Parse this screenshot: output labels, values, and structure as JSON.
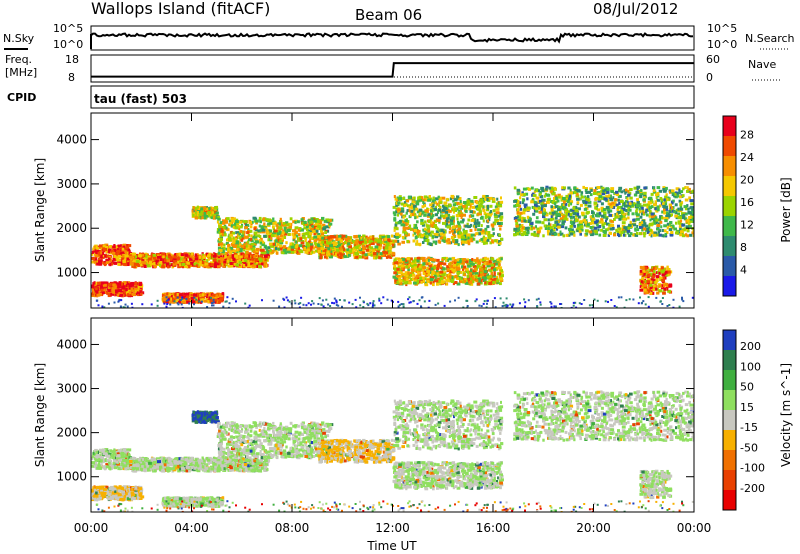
{
  "header": {
    "site": "Wallops Island (fitACF)",
    "beam": "Beam 06",
    "date": "08/Jul/2012"
  },
  "noise_panel": {
    "left_label": "N.Sky",
    "right_label": "N.Search",
    "tick_top": "10^5",
    "tick_bottom": "10^0"
  },
  "freq_panel": {
    "left_label_1": "Freq.",
    "left_label_2": "[MHz]",
    "right_label": "Nave",
    "left_ticks": [
      "18",
      "8"
    ],
    "right_ticks": [
      "60",
      "0"
    ]
  },
  "cpid_panel": {
    "label": "CPID",
    "mode": "tau (fast) 503"
  },
  "power_panel": {
    "ylabel": "Slant Range [km]",
    "yticks": [
      "4000",
      "3000",
      "2000",
      "1000"
    ],
    "colorbar_label": "Power [dB]",
    "colorbar_ticks": [
      "28",
      "24",
      "20",
      "16",
      "12",
      "8",
      "4"
    ],
    "colors": [
      "#e8001c",
      "#f04a00",
      "#f78e00",
      "#f5c800",
      "#9bd400",
      "#3fb84a",
      "#2e8b6f",
      "#2a5aa8",
      "#1a1ae8"
    ]
  },
  "velocity_panel": {
    "ylabel": "Slant Range [km]",
    "yticks": [
      "4000",
      "3000",
      "2000",
      "1000"
    ],
    "colorbar_label": "Velocity [m s^-1]",
    "colorbar_ticks": [
      "200",
      "100",
      "50",
      "15",
      "-15",
      "-50",
      "-100",
      "-200"
    ],
    "colors": [
      "#1f3fbf",
      "#2f7f4f",
      "#3faf3f",
      "#8fdf5f",
      "#c8c8c0",
      "#f7b000",
      "#f07000",
      "#e84000",
      "#e80000"
    ]
  },
  "xaxis": {
    "label": "Time UT",
    "ticks": [
      "00:00",
      "04:00",
      "08:00",
      "12:00",
      "16:00",
      "20:00",
      "00:00"
    ]
  },
  "chart_data": {
    "type": "heatmap",
    "title": "Wallops Island (fitACF)  Beam 06  08/Jul/2012",
    "xlabel": "Time UT",
    "ylabel": "Slant Range [km]",
    "xlim": [
      "00:00",
      "24:00"
    ],
    "ylim": [
      200,
      4600
    ],
    "frequency_mhz": [
      {
        "t": 0,
        "v": 10
      },
      {
        "t": 12,
        "v": 10
      },
      {
        "t": 12.05,
        "v": 15
      },
      {
        "t": 24,
        "v": 15
      }
    ],
    "bands": [
      {
        "t0": 0.0,
        "t1": 1.5,
        "r0": 1150,
        "r1": 1600,
        "power_db": 26,
        "velocity": 15
      },
      {
        "t0": 0.0,
        "t1": 2.0,
        "r0": 450,
        "r1": 750,
        "power_db": 28,
        "velocity": -15
      },
      {
        "t0": 1.5,
        "t1": 7.0,
        "r0": 1100,
        "r1": 1400,
        "power_db": 24,
        "velocity": 15
      },
      {
        "t0": 2.8,
        "t1": 5.2,
        "r0": 300,
        "r1": 500,
        "power_db": 26,
        "velocity": 15
      },
      {
        "t0": 4.0,
        "t1": 5.0,
        "r0": 2200,
        "r1": 2450,
        "power_db": 18,
        "velocity": 150
      },
      {
        "t0": 5.0,
        "t1": 9.5,
        "r0": 1400,
        "r1": 2200,
        "power_db": 18,
        "velocity": 15
      },
      {
        "t0": 9.0,
        "t1": 12.0,
        "r0": 1300,
        "r1": 1800,
        "power_db": 20,
        "velocity": -15
      },
      {
        "t0": 12.0,
        "t1": 16.3,
        "r0": 1600,
        "r1": 2700,
        "power_db": 16,
        "velocity": 15
      },
      {
        "t0": 12.0,
        "t1": 16.3,
        "r0": 700,
        "r1": 1300,
        "power_db": 20,
        "velocity": 15
      },
      {
        "t0": 16.8,
        "t1": 24.0,
        "r0": 1800,
        "r1": 2900,
        "power_db": 14,
        "velocity": 15
      },
      {
        "t0": 21.8,
        "t1": 23.0,
        "r0": 500,
        "r1": 1100,
        "power_db": 24,
        "velocity": 15
      }
    ]
  }
}
